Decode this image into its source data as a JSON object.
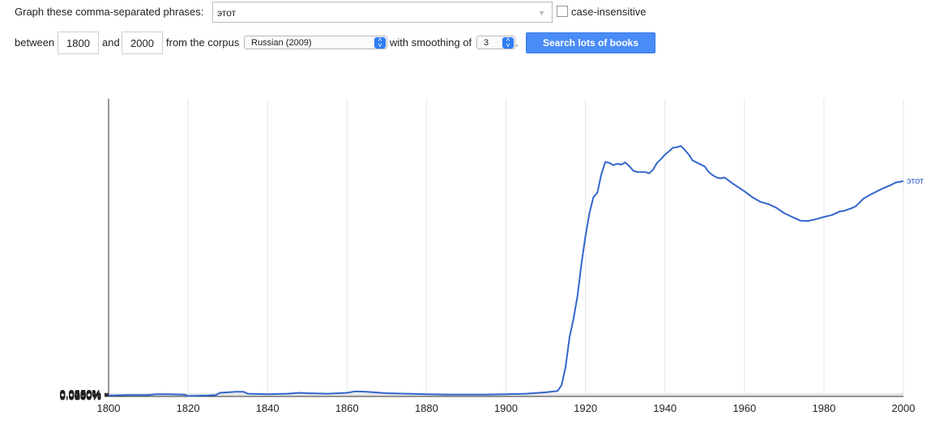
{
  "form": {
    "phrases_label": "Graph these comma-separated phrases:",
    "phrases_value": "этот",
    "case_insensitive_label": "case-insensitive",
    "between_label": "between",
    "start_year": "1800",
    "and_label": "and",
    "end_year": "2000",
    "corpus_label": "from the corpus",
    "corpus_value": "Russian (2009)",
    "smoothing_label": "with smoothing of",
    "smoothing_value": "3",
    "smoothing_suffix": ".",
    "search_button": "Search lots of books"
  },
  "colors": {
    "series": "#3366cc",
    "button": "#4a8cf7",
    "grid": "#e6e6e6"
  },
  "chart_data": {
    "type": "line",
    "x_ticks": [
      "1800",
      "1820",
      "1840",
      "1860",
      "1880",
      "1900",
      "1920",
      "1940",
      "1960",
      "1980",
      "2000"
    ],
    "y_ticks": [
      "0.0000%",
      "0.0050%",
      "0.0100%",
      "0.0150%",
      "0.0200%",
      "0.0250%",
      "0.0300%",
      "0.0350%",
      "0.0400%",
      "0.0450%",
      "0.0500%",
      "0.0550%",
      "0.0600%",
      "0.0650%"
    ],
    "xlim": [
      1800,
      2000
    ],
    "ylim": [
      0,
      0.065
    ],
    "y_unit": "%",
    "grid": true,
    "series": [
      {
        "name": "этот",
        "color": "#3366cc",
        "x": [
          1800,
          1805,
          1810,
          1812,
          1815,
          1819,
          1820,
          1825,
          1827,
          1828,
          1830,
          1832,
          1834,
          1835,
          1840,
          1845,
          1848,
          1850,
          1855,
          1858,
          1860,
          1862,
          1865,
          1870,
          1875,
          1880,
          1885,
          1890,
          1895,
          1900,
          1905,
          1910,
          1913,
          1914,
          1915,
          1916,
          1917,
          1918,
          1919,
          1920,
          1921,
          1922,
          1923,
          1924,
          1925,
          1926,
          1927,
          1928,
          1929,
          1930,
          1931,
          1932,
          1933,
          1935,
          1936,
          1937,
          1938,
          1939,
          1940,
          1941,
          1942,
          1943,
          1944,
          1945,
          1946,
          1947,
          1950,
          1951,
          1952,
          1953,
          1954,
          1955,
          1957,
          1960,
          1962,
          1964,
          1966,
          1968,
          1970,
          1972,
          1973,
          1974,
          1976,
          1978,
          1980,
          1982,
          1984,
          1985,
          1987,
          1988,
          1990,
          1992,
          1995,
          1997,
          1998,
          2000
        ],
        "y": [
          0.0002,
          0.0003,
          0.0003,
          0.0005,
          0.0005,
          0.0004,
          0.0001,
          0.0002,
          0.0003,
          0.0008,
          0.0009,
          0.001,
          0.001,
          0.0006,
          0.0005,
          0.0006,
          0.0008,
          0.0007,
          0.0006,
          0.0007,
          0.0008,
          0.0011,
          0.001,
          0.0007,
          0.0006,
          0.0005,
          0.0004,
          0.0004,
          0.0004,
          0.0005,
          0.0006,
          0.0009,
          0.0012,
          0.0025,
          0.0065,
          0.013,
          0.017,
          0.022,
          0.029,
          0.035,
          0.04,
          0.0435,
          0.0445,
          0.0485,
          0.0512,
          0.051,
          0.0505,
          0.0508,
          0.0506,
          0.0511,
          0.0503,
          0.0493,
          0.049,
          0.049,
          0.0487,
          0.0495,
          0.051,
          0.0518,
          0.0528,
          0.0535,
          0.0543,
          0.0544,
          0.0547,
          0.0538,
          0.0528,
          0.0515,
          0.0502,
          0.049,
          0.0483,
          0.0478,
          0.0476,
          0.0478,
          0.0465,
          0.0448,
          0.0435,
          0.0425,
          0.042,
          0.0412,
          0.04,
          0.0392,
          0.0388,
          0.0384,
          0.0383,
          0.0387,
          0.0392,
          0.0396,
          0.0404,
          0.0405,
          0.0411,
          0.0415,
          0.0432,
          0.0442,
          0.0455,
          0.0462,
          0.0467,
          0.047
        ]
      }
    ]
  }
}
